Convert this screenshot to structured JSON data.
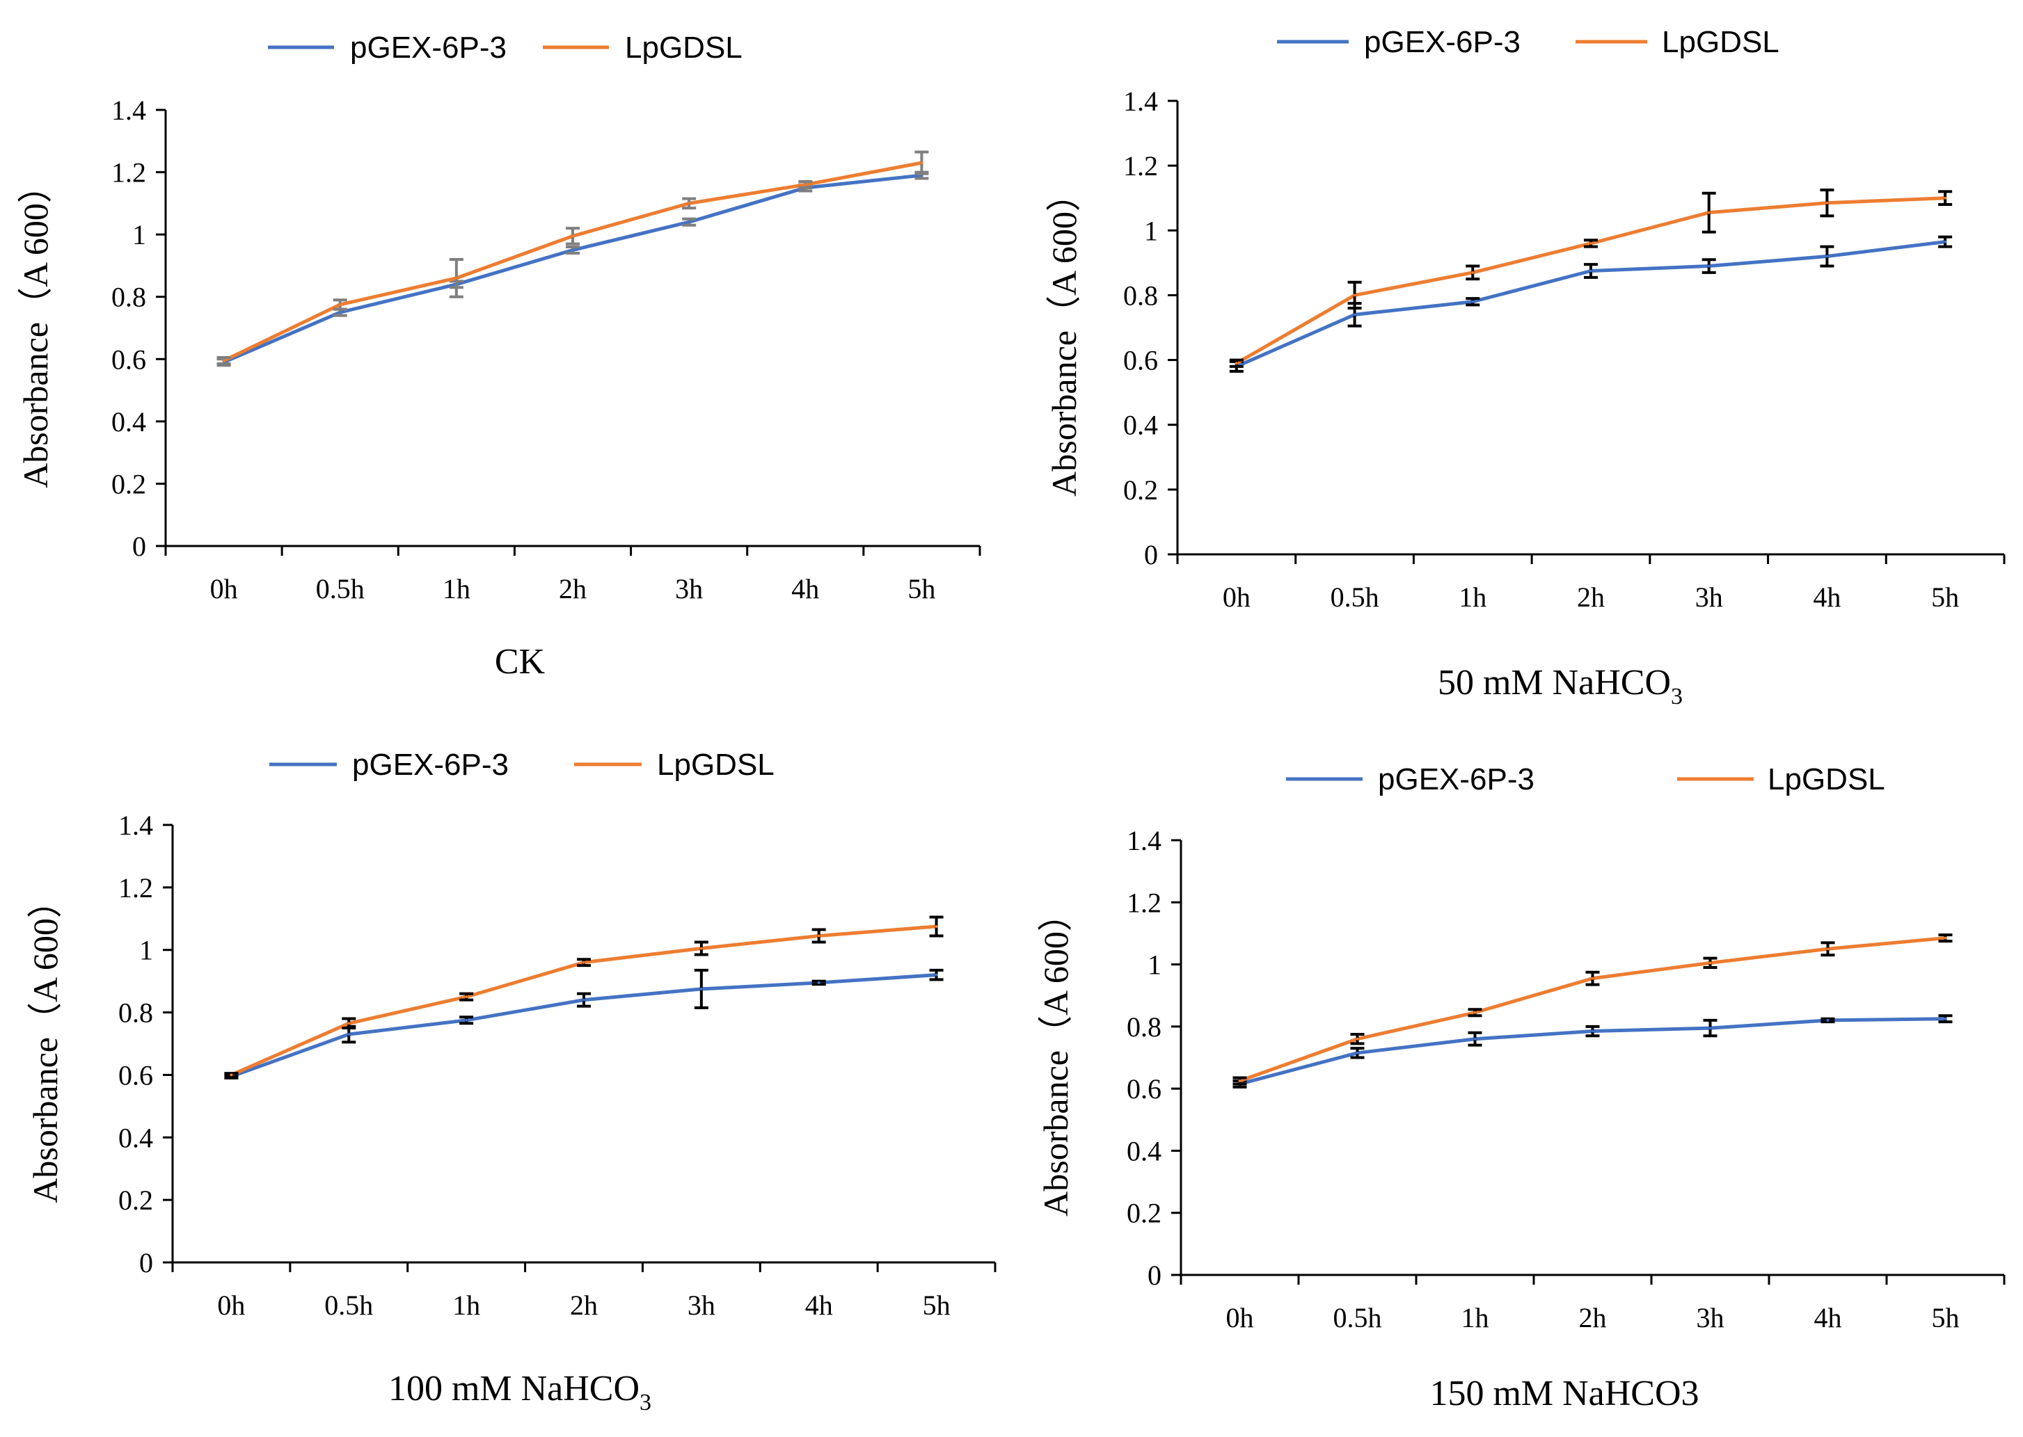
{
  "figure": {
    "description_panels": 4
  },
  "colors": {
    "pGEX": "#4472C4",
    "LpGDSL": "#ED7D31",
    "axis": "#000000",
    "error_ck": "#7F7F7F",
    "error_other": "#000000"
  },
  "chart_data": [
    {
      "type": "line",
      "id": "ck",
      "title": "CK",
      "title_main": "CK",
      "title_sub": "",
      "title_rest": "",
      "xlabel": "",
      "ylabel": "Absorbance（A 600）",
      "ylim": [
        0,
        1.4
      ],
      "yticks": [
        "0",
        "0.2",
        "0.4",
        "0.6",
        "0.8",
        "1",
        "1.2",
        "1.4"
      ],
      "categories": [
        "0h",
        "0.5h",
        "1h",
        "2h",
        "3h",
        "4h",
        "5h"
      ],
      "legend": [
        "pGEX-6P-3",
        "LpGDSL"
      ],
      "legend_position": "top",
      "series": [
        {
          "name": "pGEX-6P-3",
          "color_key": "pGEX",
          "values": [
            0.59,
            0.75,
            0.84,
            0.95,
            1.04,
            1.15,
            1.19
          ],
          "errors": [
            0.01,
            0.01,
            0.01,
            0.01,
            0.01,
            0.01,
            0.01
          ]
        },
        {
          "name": "LpGDSL",
          "color_key": "LpGDSL",
          "values": [
            0.595,
            0.775,
            0.86,
            0.995,
            1.1,
            1.16,
            1.23
          ],
          "errors": [
            0.01,
            0.015,
            0.06,
            0.025,
            0.015,
            0.01,
            0.035
          ]
        }
      ]
    },
    {
      "type": "line",
      "id": "nahco3-50",
      "title": "50 mM NaHCO3",
      "title_main": "50 mM NaHCO",
      "title_sub": "3",
      "title_rest": "",
      "xlabel": "",
      "ylabel": "Absorbance（A 600）",
      "ylim": [
        0,
        1.4
      ],
      "yticks": [
        "0",
        "0.2",
        "0.4",
        "0.6",
        "0.8",
        "1",
        "1.2",
        "1.4"
      ],
      "categories": [
        "0h",
        "0.5h",
        "1h",
        "2h",
        "3h",
        "4h",
        "5h"
      ],
      "legend": [
        "pGEX-6P-3",
        "LpGDSL"
      ],
      "legend_position": "top",
      "series": [
        {
          "name": "pGEX-6P-3",
          "color_key": "pGEX",
          "values": [
            0.58,
            0.74,
            0.78,
            0.875,
            0.89,
            0.92,
            0.965
          ],
          "errors": [
            0.015,
            0.035,
            0.01,
            0.02,
            0.02,
            0.03,
            0.015
          ]
        },
        {
          "name": "LpGDSL",
          "color_key": "LpGDSL",
          "values": [
            0.59,
            0.8,
            0.87,
            0.96,
            1.055,
            1.085,
            1.1
          ],
          "errors": [
            0.01,
            0.04,
            0.02,
            0.01,
            0.06,
            0.04,
            0.02
          ]
        }
      ]
    },
    {
      "type": "line",
      "id": "nahco3-100",
      "title": "100 mM NaHCO3",
      "title_main": "100 mM NaHCO",
      "title_sub": "3",
      "title_rest": "",
      "xlabel": "",
      "ylabel": "Absorbance（A 600）",
      "ylim": [
        0,
        1.4
      ],
      "yticks": [
        "0",
        "0.2",
        "0.4",
        "0.6",
        "0.8",
        "1",
        "1.2",
        "1.4"
      ],
      "categories": [
        "0h",
        "0.5h",
        "1h",
        "2h",
        "3h",
        "4h",
        "5h"
      ],
      "legend": [
        "pGEX-6P-3",
        "LpGDSL"
      ],
      "legend_position": "top",
      "series": [
        {
          "name": "pGEX-6P-3",
          "color_key": "pGEX",
          "values": [
            0.595,
            0.73,
            0.775,
            0.84,
            0.875,
            0.895,
            0.92
          ],
          "errors": [
            0.005,
            0.025,
            0.01,
            0.02,
            0.06,
            0.005,
            0.015
          ]
        },
        {
          "name": "LpGDSL",
          "color_key": "LpGDSL",
          "values": [
            0.6,
            0.765,
            0.85,
            0.96,
            1.005,
            1.045,
            1.075
          ],
          "errors": [
            0.005,
            0.015,
            0.01,
            0.01,
            0.02,
            0.02,
            0.03
          ]
        }
      ]
    },
    {
      "type": "line",
      "id": "nahco3-150",
      "title": "150 mM NaHCO3",
      "title_main": "150 mM NaHCO3",
      "title_sub": "",
      "title_rest": "",
      "xlabel": "",
      "ylabel": "Absorbance（A 600）",
      "ylim": [
        0,
        1.4
      ],
      "yticks": [
        "0",
        "0.2",
        "0.4",
        "0.6",
        "0.8",
        "1",
        "1.2",
        "1.4"
      ],
      "categories": [
        "0h",
        "0.5h",
        "1h",
        "2h",
        "3h",
        "4h",
        "5h"
      ],
      "legend": [
        "pGEX-6P-3",
        "LpGDSL"
      ],
      "legend_position": "top",
      "series": [
        {
          "name": "pGEX-6P-3",
          "color_key": "pGEX",
          "values": [
            0.615,
            0.715,
            0.76,
            0.785,
            0.795,
            0.82,
            0.825
          ],
          "errors": [
            0.01,
            0.015,
            0.02,
            0.015,
            0.025,
            0.005,
            0.01
          ]
        },
        {
          "name": "LpGDSL",
          "color_key": "LpGDSL",
          "values": [
            0.625,
            0.76,
            0.845,
            0.955,
            1.005,
            1.05,
            1.085
          ],
          "errors": [
            0.01,
            0.015,
            0.01,
            0.02,
            0.015,
            0.02,
            0.01
          ]
        }
      ]
    }
  ]
}
